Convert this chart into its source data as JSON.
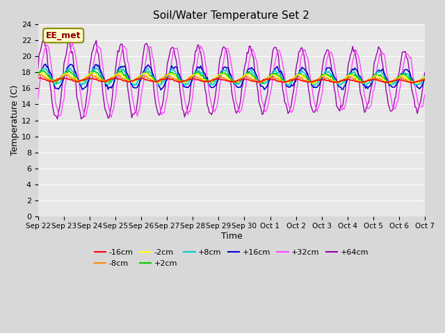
{
  "title": "Soil/Water Temperature Set 2",
  "xlabel": "Time",
  "ylabel": "Temperature (C)",
  "ylim": [
    0,
    24
  ],
  "yticks": [
    0,
    2,
    4,
    6,
    8,
    10,
    12,
    14,
    16,
    18,
    20,
    22,
    24
  ],
  "bg_color": "#d8d8d8",
  "plot_bg_color": "#e8e8e8",
  "colors": {
    "-16cm": "#ff0000",
    "-8cm": "#ff8800",
    "-2cm": "#ffff00",
    "+2cm": "#00cc00",
    "+8cm": "#00cccc",
    "+16cm": "#0000cc",
    "+32cm": "#ff44ff",
    "+64cm": "#9900aa"
  },
  "annotation_text": "EE_met",
  "tick_labels": [
    "Sep 22",
    "Sep 23",
    "Sep 24",
    "Sep 25",
    "Sep 26",
    "Sep 27",
    "Sep 28",
    "Sep 29",
    "Sep 30",
    "Oct 1",
    "Oct 2",
    "Oct 3",
    "Oct 4",
    "Oct 5",
    "Oct 6",
    "Oct 7"
  ],
  "tick_positions": [
    0,
    1,
    2,
    3,
    4,
    5,
    6,
    7,
    8,
    9,
    10,
    11,
    12,
    13,
    14,
    15
  ]
}
